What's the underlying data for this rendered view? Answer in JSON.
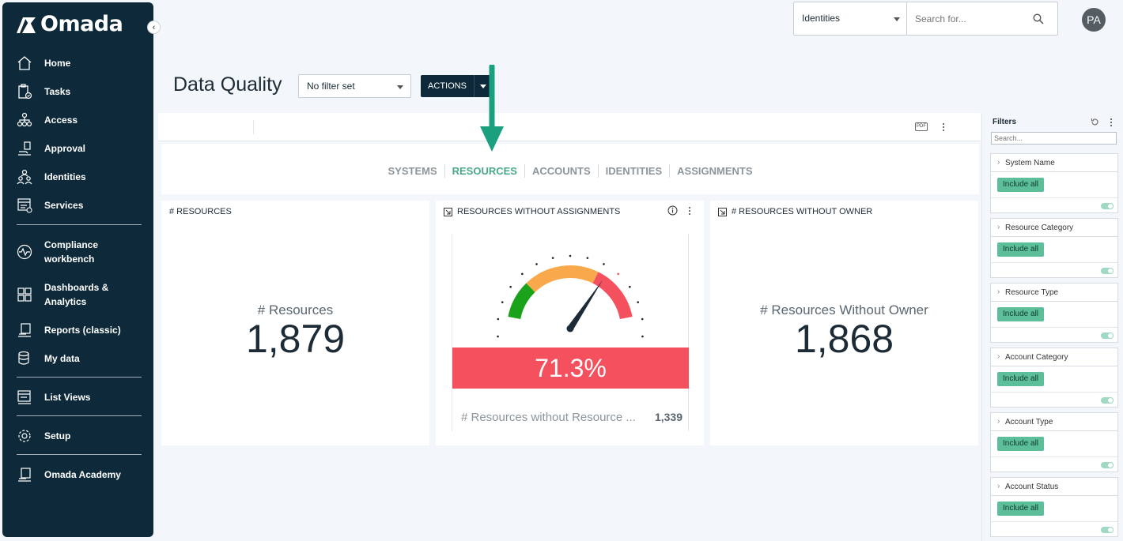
{
  "app": {
    "brand": "Omada"
  },
  "sidebar": {
    "items": [
      {
        "label": "Home",
        "icon": "home-icon"
      },
      {
        "label": "Tasks",
        "icon": "clipboard-check-icon"
      },
      {
        "label": "Access",
        "icon": "org-tree-icon"
      },
      {
        "label": "Approval",
        "icon": "approval-icon"
      },
      {
        "label": "Identities",
        "icon": "users-icon"
      },
      {
        "label": "Services",
        "icon": "services-icon"
      },
      {
        "label": "Compliance workbench",
        "icon": "pulse-icon"
      },
      {
        "label": "Dashboards & Analytics",
        "icon": "grid-icon"
      },
      {
        "label": "Reports (classic)",
        "icon": "report-icon"
      },
      {
        "label": "My data",
        "icon": "database-icon"
      },
      {
        "label": "List Views",
        "icon": "list-view-icon"
      },
      {
        "label": "Setup",
        "icon": "gear-icon"
      },
      {
        "label": "Omada Academy",
        "icon": "academy-icon"
      }
    ]
  },
  "topbar": {
    "search_type": "Identities",
    "search_placeholder": "Search for...",
    "avatar_initials": "PA"
  },
  "page": {
    "title": "Data Quality",
    "filter_value": "No filter set",
    "actions_label": "ACTIONS"
  },
  "tabs": [
    {
      "label": "SYSTEMS",
      "active": false
    },
    {
      "label": "RESOURCES",
      "active": true
    },
    {
      "label": "ACCOUNTS",
      "active": false
    },
    {
      "label": "IDENTITIES",
      "active": false
    },
    {
      "label": "ASSIGNMENTS",
      "active": false
    }
  ],
  "cards": {
    "resources": {
      "title": "# RESOURCES",
      "label": "# Resources",
      "value": "1,879"
    },
    "without_assignments": {
      "title": "RESOURCES WITHOUT ASSIGNMENTS",
      "percent": "71.3%",
      "gauge_fraction": 0.713,
      "footer_label": "# Resources without Resource ...",
      "footer_value": "1,339"
    },
    "without_owner": {
      "title": "# RESOURCES WITHOUT OWNER",
      "label": "# Resources Without Owner",
      "value": "1,868"
    }
  },
  "filters": {
    "title": "Filters",
    "search_placeholder": "Search...",
    "groups": [
      {
        "name": "System Name",
        "chip": "Include all"
      },
      {
        "name": "Resource Category",
        "chip": "Include all"
      },
      {
        "name": "Resource Type",
        "chip": "Include all"
      },
      {
        "name": "Account Category",
        "chip": "Include all"
      },
      {
        "name": "Account Type",
        "chip": "Include all"
      },
      {
        "name": "Account Status",
        "chip": "Include all"
      }
    ]
  },
  "colors": {
    "sidebar_bg": "#0e2a3a",
    "accent_green": "#49a88a",
    "gauge_red": "#f4505e",
    "gauge_orange": "#f9a94b",
    "gauge_green": "#1aa31a",
    "chip_green": "#5dbf9a"
  }
}
